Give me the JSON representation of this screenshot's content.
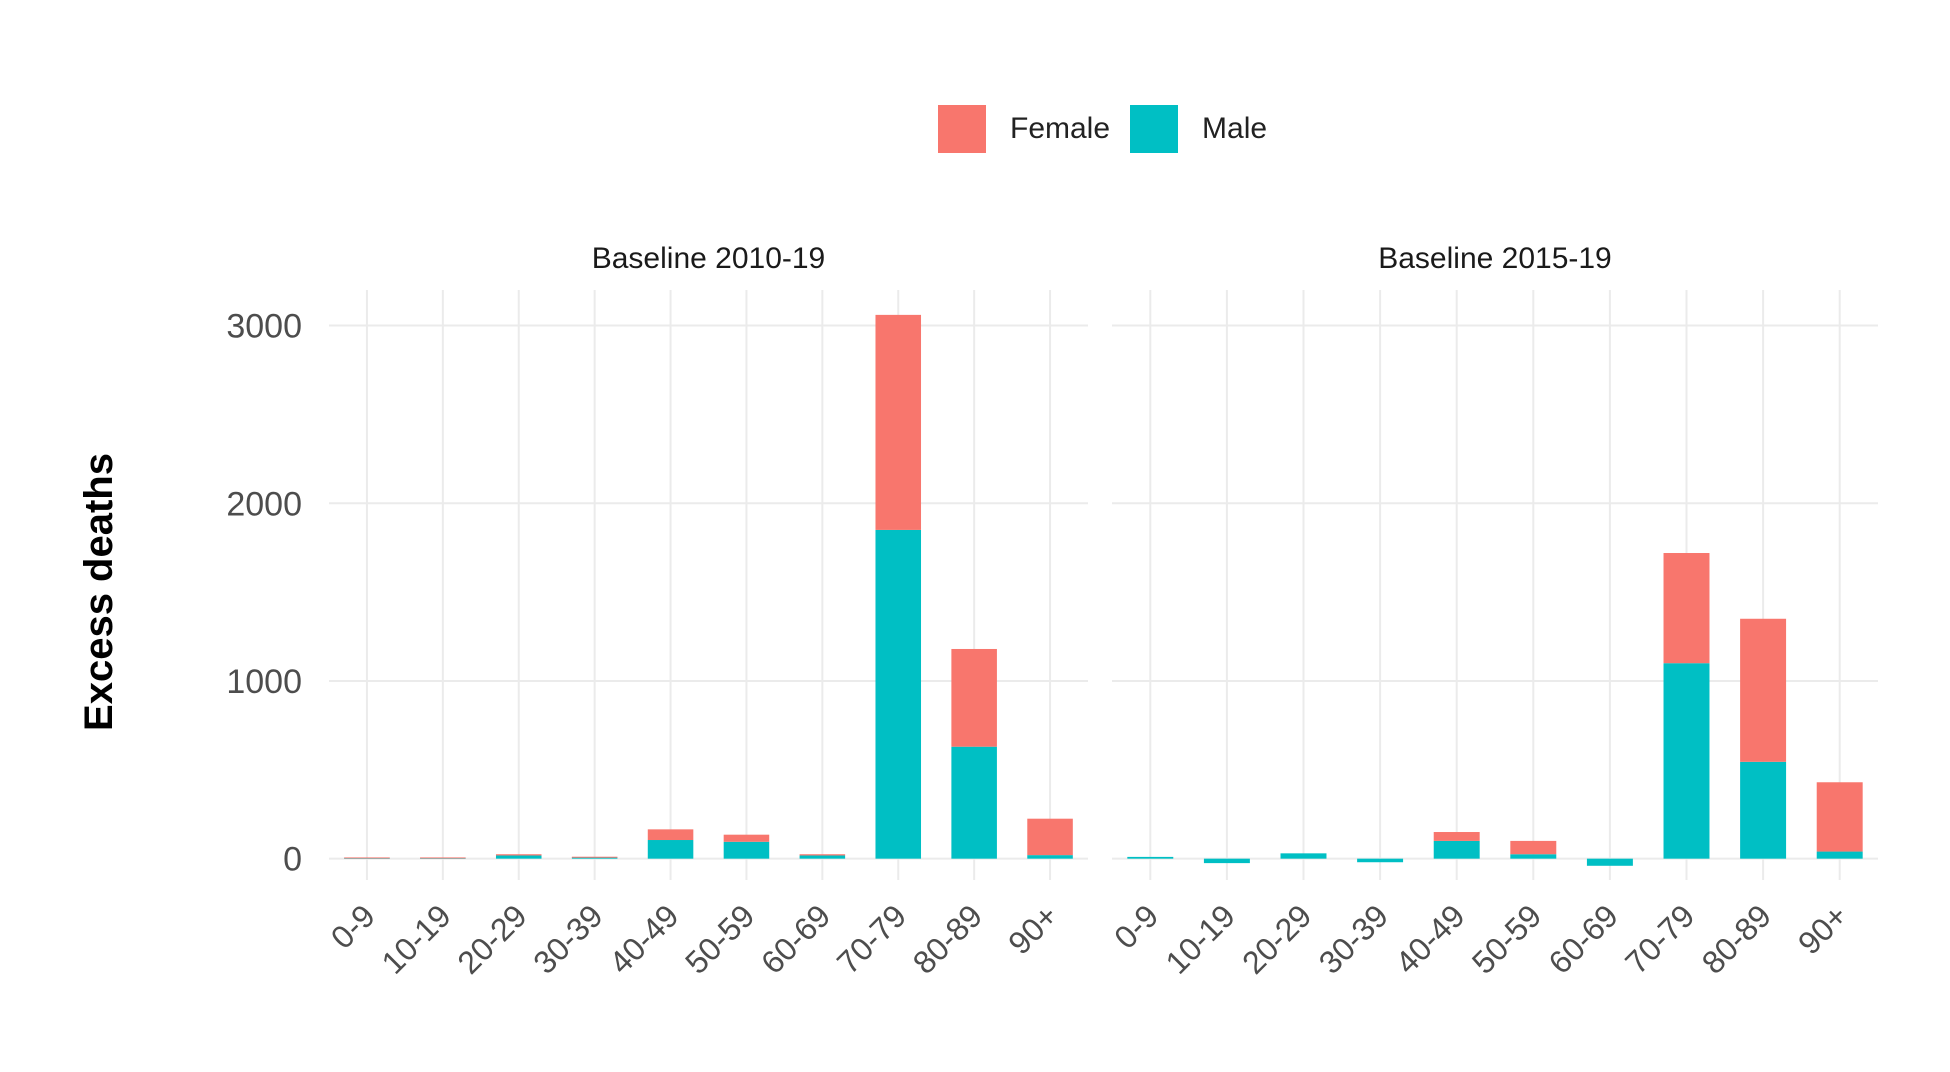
{
  "chart_data": {
    "type": "bar",
    "stacked": true,
    "ylabel": "Excess deaths",
    "xlabel": "",
    "ylim": [
      -120,
      3200
    ],
    "yticks": [
      0,
      1000,
      2000,
      3000
    ],
    "grid": true,
    "legend": {
      "position": "top",
      "entries": [
        {
          "name": "Female",
          "color": "#F8766D"
        },
        {
          "name": "Male",
          "color": "#00BFC4"
        }
      ]
    },
    "categories": [
      "0-9",
      "10-19",
      "20-29",
      "30-39",
      "40-49",
      "50-59",
      "60-69",
      "70-79",
      "80-89",
      "90+"
    ],
    "panels": [
      {
        "title": "Baseline 2010-19",
        "series": [
          {
            "name": "Male",
            "values": [
              5,
              5,
              18,
              8,
              105,
              95,
              18,
              1850,
              630,
              20
            ]
          },
          {
            "name": "Female",
            "values": [
              2,
              2,
              7,
              3,
              60,
              40,
              7,
              1210,
              550,
              205
            ]
          }
        ]
      },
      {
        "title": "Baseline 2015-19",
        "series": [
          {
            "name": "Male",
            "values": [
              10,
              -25,
              30,
              -20,
              100,
              25,
              -40,
              1100,
              545,
              40
            ]
          },
          {
            "name": "Female",
            "values": [
              0,
              0,
              0,
              0,
              50,
              75,
              0,
              620,
              805,
              390
            ]
          }
        ]
      }
    ]
  }
}
